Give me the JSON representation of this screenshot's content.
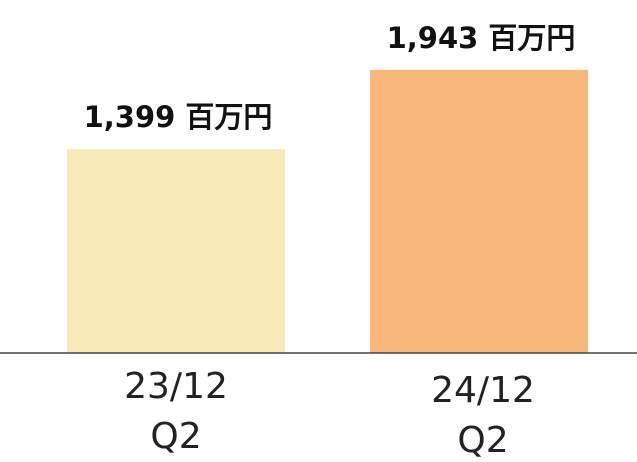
{
  "chart_data": {
    "type": "bar",
    "categories": [
      "23/12 Q2",
      "24/12 Q2"
    ],
    "values": [
      1399,
      1943
    ],
    "value_labels": [
      "1,399 百万円",
      "1,943 百万円"
    ],
    "colors": [
      "#f8eab8",
      "#f7b77b"
    ],
    "ylim": [
      0,
      2100
    ]
  }
}
